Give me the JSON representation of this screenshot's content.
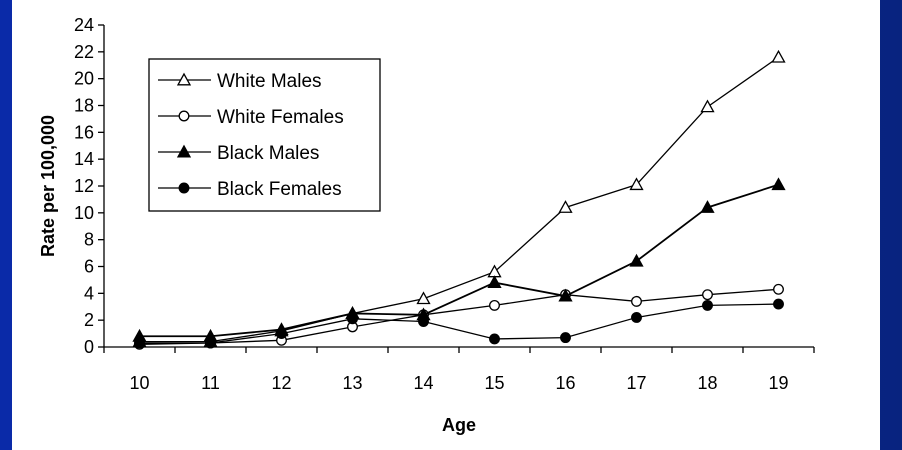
{
  "colors": {
    "background": "#0a2a9a",
    "plot": "#ffffff",
    "series": "#000000"
  },
  "chart_data": {
    "type": "line",
    "title": "",
    "xlabel": "Age",
    "ylabel": "Rate per 100,000",
    "x": [
      10,
      11,
      12,
      13,
      14,
      15,
      16,
      17,
      18,
      19
    ],
    "ylim": [
      0,
      24
    ],
    "yticks": [
      0,
      2,
      4,
      6,
      8,
      10,
      12,
      14,
      16,
      18,
      20,
      22,
      24
    ],
    "grid": false,
    "legend_position": "top-left",
    "series": [
      {
        "name": "White Males",
        "marker": "triangle-open",
        "values": [
          0.4,
          0.4,
          1.2,
          2.5,
          3.6,
          5.6,
          10.4,
          12.1,
          17.9,
          21.6
        ]
      },
      {
        "name": "White Females",
        "marker": "circle-open",
        "values": [
          0.2,
          0.3,
          0.5,
          1.5,
          2.4,
          3.1,
          3.9,
          3.4,
          3.9,
          4.3
        ]
      },
      {
        "name": "Black Males",
        "marker": "triangle-filled",
        "values": [
          0.8,
          0.8,
          1.3,
          2.5,
          2.4,
          4.8,
          3.8,
          6.4,
          10.4,
          12.1
        ]
      },
      {
        "name": "Black Females",
        "marker": "circle-filled",
        "values": [
          0.3,
          0.3,
          1.0,
          2.1,
          1.9,
          0.6,
          0.7,
          2.2,
          3.1,
          3.2
        ]
      }
    ]
  }
}
